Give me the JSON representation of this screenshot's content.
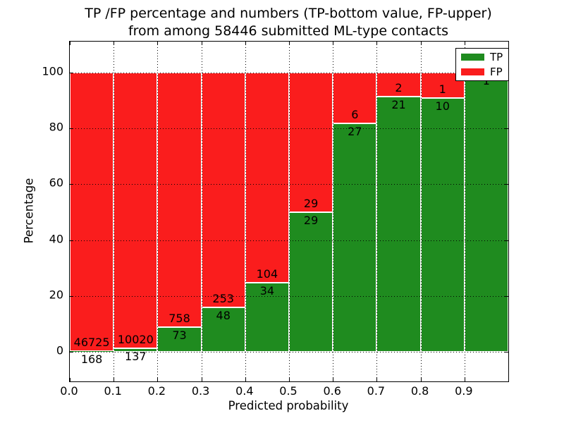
{
  "title": {
    "line1": "TP /FP percentage and numbers (TP-bottom value, FP-upper)",
    "line2": "from among 58446 submitted ML-type contacts"
  },
  "chart_data": {
    "type": "bar",
    "stacked": true,
    "normalized_to_percent": true,
    "total_contacts": 58446,
    "bin_starts": [
      0.0,
      0.1,
      0.2,
      0.3,
      0.4,
      0.5,
      0.6,
      0.7,
      0.8,
      0.9
    ],
    "bin_width": 0.1,
    "series": [
      {
        "name": "TP",
        "color": "#1f8b1f",
        "counts": [
          168,
          137,
          73,
          48,
          34,
          29,
          27,
          21,
          10,
          1
        ]
      },
      {
        "name": "FP",
        "color": "#fa1d1d",
        "counts": [
          46725,
          10020,
          758,
          253,
          104,
          29,
          6,
          2,
          1,
          0
        ]
      }
    ],
    "tp_percent": [
      0.36,
      1.35,
      8.78,
      15.95,
      24.64,
      50.0,
      81.82,
      91.3,
      90.91,
      100.0
    ],
    "xlabel": "Predicted probability",
    "ylabel": "Percentage",
    "xticks": [
      "0.0",
      "0.1",
      "0.2",
      "0.3",
      "0.4",
      "0.5",
      "0.6",
      "0.7",
      "0.8",
      "0.9"
    ],
    "yticks": [
      "0",
      "20",
      "40",
      "60",
      "80",
      "100"
    ],
    "xlim": [
      0.0,
      1.0
    ],
    "ylim": [
      -10.6,
      111.1
    ],
    "grid": "dotted",
    "bar_edge_color": "#ffffff",
    "legend": {
      "position": "upper right",
      "entries": [
        {
          "label": "TP",
          "color": "#1f8b1f"
        },
        {
          "label": "FP",
          "color": "#fa1d1d"
        }
      ]
    }
  }
}
